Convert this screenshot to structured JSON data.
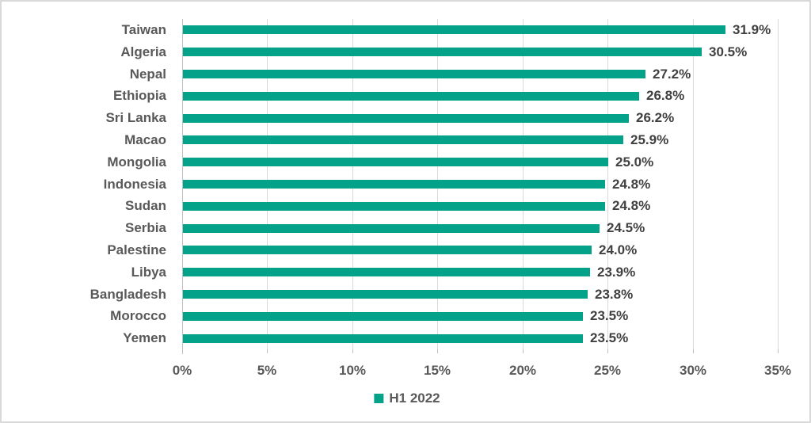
{
  "chart_data": {
    "type": "bar",
    "orientation": "horizontal",
    "categories": [
      "Taiwan",
      "Algeria",
      "Nepal",
      "Ethiopia",
      "Sri Lanka",
      "Macao",
      "Mongolia",
      "Indonesia",
      "Sudan",
      "Serbia",
      "Palestine",
      "Libya",
      "Bangladesh",
      "Morocco",
      "Yemen"
    ],
    "values": [
      31.9,
      30.5,
      27.2,
      26.8,
      26.2,
      25.9,
      25.0,
      24.8,
      24.8,
      24.5,
      24.0,
      23.9,
      23.8,
      23.5,
      23.5
    ],
    "value_labels": [
      "31.9%",
      "30.5%",
      "27.2%",
      "26.8%",
      "26.2%",
      "25.9%",
      "25.0%",
      "24.8%",
      "24.8%",
      "24.5%",
      "24.0%",
      "23.9%",
      "23.8%",
      "23.5%",
      "23.5%"
    ],
    "title": "",
    "xlabel": "",
    "ylabel": "",
    "xlim": [
      0,
      35
    ],
    "x_tick_labels": [
      "0%",
      "5%",
      "10%",
      "15%",
      "20%",
      "25%",
      "30%",
      "35%"
    ],
    "x_tick_values": [
      0,
      5,
      10,
      15,
      20,
      25,
      30,
      35
    ],
    "grid": true,
    "legend_position": "bottom-center",
    "series_name": "H1 2022",
    "colors": {
      "bar": "#03a289",
      "gridline": "#d9d9d9",
      "axis_line": "#bfbfbf",
      "category_label": "#595959",
      "value_label": "#404040",
      "tick_label": "#595959",
      "frame_border": "#d9d9d9",
      "background": "#ffffff"
    }
  },
  "legend": {
    "h1_2022_label": "H1 2022"
  }
}
